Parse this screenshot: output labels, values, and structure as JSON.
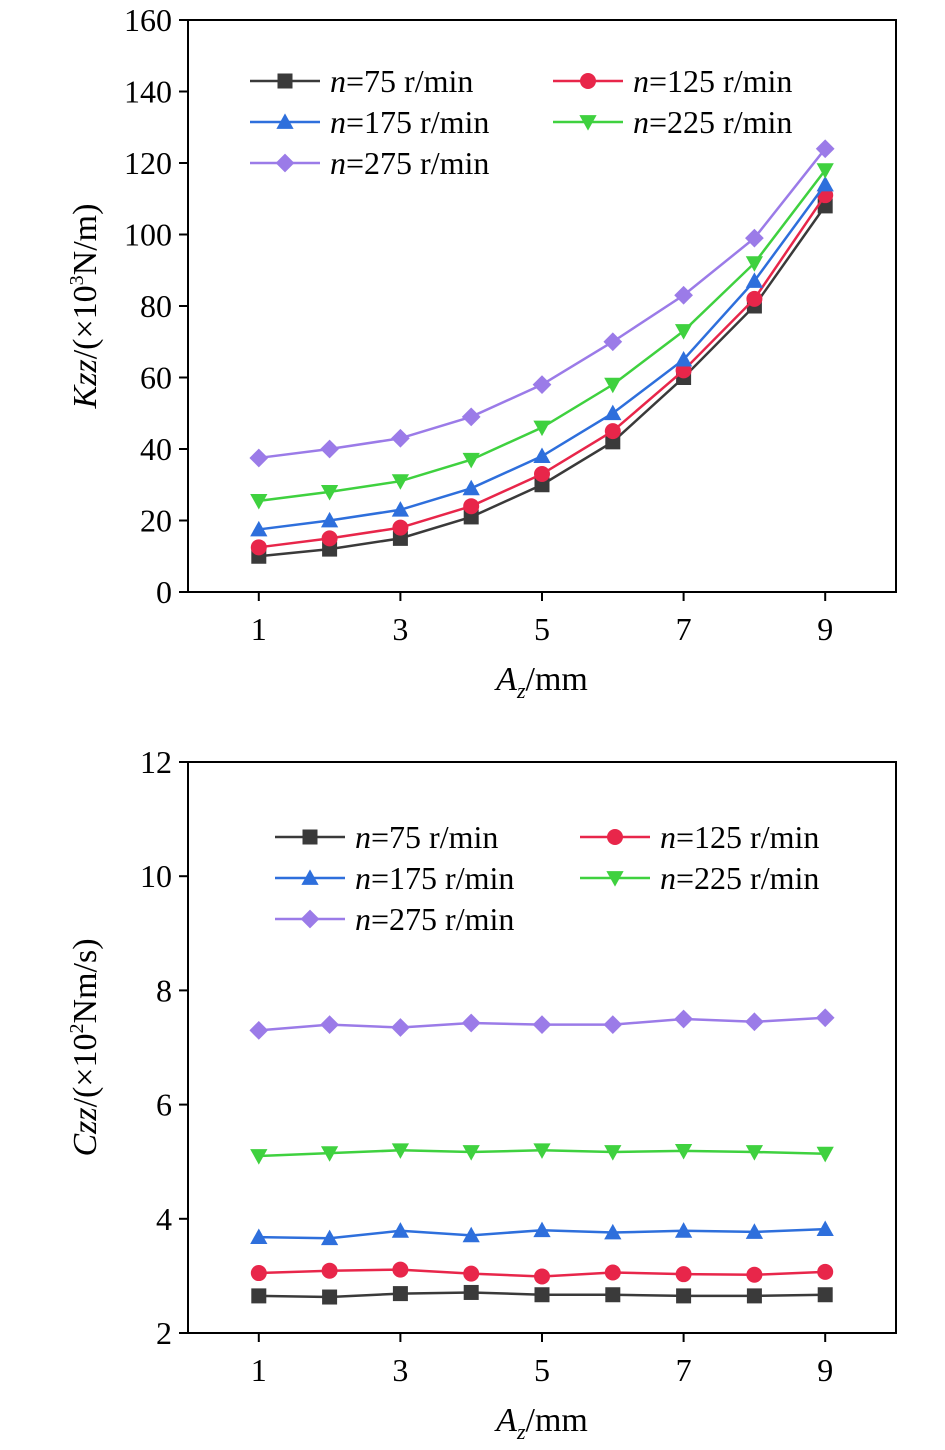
{
  "chart_data": [
    {
      "type": "line",
      "id": "kzz",
      "title": "",
      "xlabel": {
        "main": "A",
        "sub": "z",
        "rest": "/mm"
      },
      "ylabel": {
        "italic": "Kzz",
        "rest": "/(×10",
        "sup": "3",
        "end": "N/m)"
      },
      "xlim": [
        0,
        10
      ],
      "ylim": [
        0,
        160
      ],
      "xticks": [
        1,
        3,
        5,
        7,
        9
      ],
      "yticks": [
        0,
        20,
        40,
        60,
        80,
        100,
        120,
        140,
        160
      ],
      "x": [
        1,
        2,
        3,
        4,
        5,
        6,
        7,
        8,
        9
      ],
      "series": [
        {
          "name": "=75 r/min",
          "prefix": "n",
          "color": "#3a3a3a",
          "marker": "square",
          "values": [
            10,
            12,
            15,
            21,
            30,
            42,
            60,
            80,
            108
          ]
        },
        {
          "name": "=125 r/min",
          "prefix": "n",
          "color": "#e8264a",
          "marker": "circle",
          "values": [
            12.5,
            15,
            18,
            24,
            33,
            45,
            62,
            82,
            111
          ]
        },
        {
          "name": "=175 r/min",
          "prefix": "n",
          "color": "#2e6fdc",
          "marker": "triangle-up",
          "values": [
            17.5,
            20,
            23,
            29,
            38,
            50,
            65,
            87,
            114
          ]
        },
        {
          "name": "=225 r/min",
          "prefix": "n",
          "color": "#3fd13f",
          "marker": "triangle-down",
          "values": [
            25.5,
            28,
            31,
            37,
            46,
            58,
            73,
            92,
            118
          ]
        },
        {
          "name": "=275 r/min",
          "prefix": "n",
          "color": "#9b7be8",
          "marker": "diamond",
          "values": [
            37.5,
            40,
            43,
            49,
            58,
            70,
            83,
            99,
            124
          ]
        }
      ]
    },
    {
      "type": "line",
      "id": "czz",
      "title": "",
      "xlabel": {
        "main": "A",
        "sub": "z",
        "rest": "/mm"
      },
      "ylabel": {
        "italic": "Czz",
        "rest": "/(×10",
        "sup": "2",
        "end": "Nm/s)"
      },
      "xlim": [
        0,
        10
      ],
      "ylim": [
        2,
        12
      ],
      "xticks": [
        1,
        3,
        5,
        7,
        9
      ],
      "yticks": [
        2,
        4,
        6,
        8,
        10,
        12
      ],
      "x": [
        1,
        2,
        3,
        4,
        5,
        6,
        7,
        8,
        9
      ],
      "series": [
        {
          "name": "=75 r/min",
          "prefix": "n",
          "color": "#3a3a3a",
          "marker": "square",
          "values": [
            2.65,
            2.63,
            2.69,
            2.71,
            2.67,
            2.67,
            2.65,
            2.65,
            2.67
          ]
        },
        {
          "name": "=125 r/min",
          "prefix": "n",
          "color": "#e8264a",
          "marker": "circle",
          "values": [
            3.05,
            3.09,
            3.11,
            3.04,
            2.99,
            3.06,
            3.03,
            3.02,
            3.07
          ]
        },
        {
          "name": "=175 r/min",
          "prefix": "n",
          "color": "#2e6fdc",
          "marker": "triangle-up",
          "values": [
            3.68,
            3.66,
            3.79,
            3.71,
            3.8,
            3.76,
            3.79,
            3.77,
            3.82
          ]
        },
        {
          "name": "=225 r/min",
          "prefix": "n",
          "color": "#3fd13f",
          "marker": "triangle-down",
          "values": [
            5.1,
            5.15,
            5.2,
            5.17,
            5.2,
            5.17,
            5.19,
            5.17,
            5.14
          ]
        },
        {
          "name": "=275 r/min",
          "prefix": "n",
          "color": "#9b7be8",
          "marker": "diamond",
          "values": [
            7.3,
            7.4,
            7.35,
            7.43,
            7.4,
            7.4,
            7.5,
            7.45,
            7.52
          ]
        }
      ]
    }
  ]
}
